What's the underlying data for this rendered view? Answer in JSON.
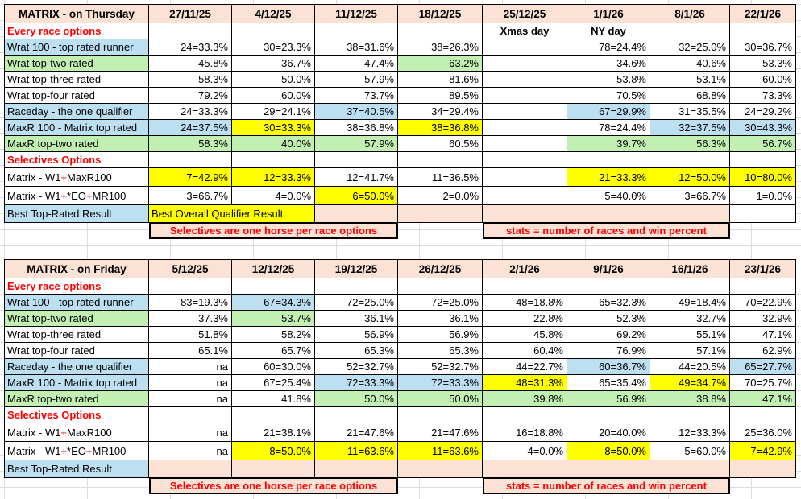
{
  "colors": {
    "peach": "#FBE2D5",
    "blue": "#BDDFF2",
    "green": "#C2F0B2",
    "yellow": "#FFFF00",
    "red": "#FF0000",
    "border": "#000000",
    "gridline": "#DCDCDC"
  },
  "tables": [
    {
      "title": "MATRIX - on Thursday",
      "dates": [
        "27/11/25",
        "4/12/25",
        "11/12/25",
        "18/12/25",
        "25/12/25",
        "1/1/26",
        "8/1/26",
        "22/1/26"
      ],
      "rows": [
        {
          "type": "section",
          "label": "Every race options",
          "notes": [
            {
              "col": 4,
              "text": "Xmas day"
            },
            {
              "col": 5,
              "text": "NY day"
            }
          ]
        },
        {
          "type": "data",
          "label": "Wrat 100 - top rated runner",
          "label_bg": "b",
          "cells": [
            "24=33.3%",
            "30=23.3%",
            "38=31.6%",
            "38=26.3%",
            "",
            "78=24.4%",
            "32=25.0%",
            "30=36.7%"
          ],
          "bg": [
            "",
            "",
            "",
            "",
            "",
            "",
            "",
            ""
          ]
        },
        {
          "type": "data",
          "label": "Wrat top-two rated",
          "label_bg": "g",
          "cells": [
            "45.8%",
            "36.7%",
            "47.4%",
            "63.2%",
            "",
            "34.6%",
            "40.6%",
            "53.3%"
          ],
          "bg": [
            "",
            "",
            "",
            "g",
            "",
            "",
            "",
            ""
          ]
        },
        {
          "type": "data",
          "label": "Wrat top-three rated",
          "label_bg": "",
          "cells": [
            "58.3%",
            "50.0%",
            "57.9%",
            "81.6%",
            "",
            "53.8%",
            "53.1%",
            "60.0%"
          ],
          "bg": [
            "",
            "",
            "",
            "",
            "",
            "",
            "",
            ""
          ]
        },
        {
          "type": "data",
          "label": "Wrat top-four rated",
          "label_bg": "",
          "cells": [
            "79.2%",
            "60.0%",
            "73.7%",
            "89.5%",
            "",
            "70.5%",
            "68.8%",
            "73.3%"
          ],
          "bg": [
            "",
            "",
            "",
            "",
            "",
            "",
            "",
            ""
          ]
        },
        {
          "type": "data",
          "label": "Raceday - the one qualifier",
          "label_bg": "b",
          "cells": [
            "24=33.3%",
            "29=24.1%",
            "37=40.5%",
            "34=29.4%",
            "",
            "67=29.9%",
            "31=35.5%",
            "24=29.2%"
          ],
          "bg": [
            "",
            "",
            "b",
            "",
            "",
            "b",
            "",
            ""
          ]
        },
        {
          "type": "data",
          "label": "MaxR 100 - Matrix top rated",
          "label_bg": "b",
          "cells": [
            "24=37.5%",
            "30=33.3%",
            "38=36.8%",
            "38=36.8%",
            "",
            "78=24.4%",
            "32=37.5%",
            "30=43.3%"
          ],
          "bg": [
            "b",
            "y",
            "",
            "y",
            "",
            "",
            "b",
            "b"
          ]
        },
        {
          "type": "data",
          "label": "MaxR top-two rated",
          "label_bg": "g",
          "cells": [
            "58.3%",
            "40.0%",
            "57.9%",
            "60.5%",
            "",
            "39.7%",
            "56.3%",
            "56.7%"
          ],
          "bg": [
            "g",
            "g",
            "g",
            "",
            "",
            "g",
            "g",
            "g"
          ]
        },
        {
          "type": "section",
          "label": "Selectives Options",
          "notes": []
        },
        {
          "type": "data",
          "label": "Matrix - W1+MaxR100",
          "label_bg": "",
          "parts": [
            {
              "t": "Matrix - W1"
            },
            {
              "t": "+",
              "red": true
            },
            {
              "t": "MaxR100"
            }
          ],
          "cells": [
            "7=42.9%",
            "12=33.3%",
            "12=41.7%",
            "11=36.5%",
            "",
            "21=33.3%",
            "12=50.0%",
            "10=80.0%"
          ],
          "bg": [
            "y",
            "y",
            "",
            "",
            "",
            "y",
            "y",
            "y"
          ]
        },
        {
          "type": "data",
          "label": "Matrix - W1+*EO+MR100",
          "label_bg": "",
          "parts": [
            {
              "t": "Matrix - W1"
            },
            {
              "t": "+",
              "red": true
            },
            {
              "t": "*EO"
            },
            {
              "t": "+",
              "red": true
            },
            {
              "t": "MR100"
            }
          ],
          "cells": [
            "3=66.7%",
            "4=0.0%",
            "6=50.0%",
            "2=0.0%",
            "",
            "5=40.0%",
            "3=66.7%",
            "1=0.0%"
          ],
          "bg": [
            "",
            "",
            "y",
            "",
            "",
            "",
            "",
            ""
          ]
        },
        {
          "type": "best",
          "label": "Best Top-Rated Result",
          "banner": "Best Overall Qualifier Result",
          "last_col_white": true
        },
        {
          "type": "footer",
          "left": "Selectives are one horse per race options",
          "right": "stats = number of races and win percent"
        }
      ]
    },
    {
      "title": "MATRIX - on Friday",
      "dates": [
        "5/12/25",
        "12/12/25",
        "19/12/25",
        "26/12/25",
        "2/1/26",
        "9/1/26",
        "16/1/26",
        "23/1/26"
      ],
      "rows": [
        {
          "type": "section",
          "label": "Every race options",
          "notes": []
        },
        {
          "type": "data",
          "label": "Wrat 100 - top rated runner",
          "label_bg": "b",
          "cells": [
            "83=19.3%",
            "67=34.3%",
            "72=25.0%",
            "72=25.0%",
            "48=18.8%",
            "65=32.3%",
            "49=18.4%",
            "70=22.9%"
          ],
          "bg": [
            "",
            "b",
            "",
            "",
            "",
            "",
            "",
            ""
          ]
        },
        {
          "type": "data",
          "label": "Wrat top-two rated",
          "label_bg": "g",
          "cells": [
            "37.3%",
            "53.7%",
            "36.1%",
            "36.1%",
            "22.8%",
            "52.3%",
            "32.7%",
            "32.9%"
          ],
          "bg": [
            "",
            "g",
            "",
            "",
            "",
            "",
            "",
            ""
          ]
        },
        {
          "type": "data",
          "label": "Wrat top-three rated",
          "label_bg": "",
          "cells": [
            "51.8%",
            "58.2%",
            "56.9%",
            "56.9%",
            "45.8%",
            "69.2%",
            "55.1%",
            "47.1%"
          ],
          "bg": [
            "",
            "",
            "",
            "",
            "",
            "",
            "",
            ""
          ]
        },
        {
          "type": "data",
          "label": "Wrat top-four rated",
          "label_bg": "",
          "cells": [
            "65.1%",
            "65.7%",
            "65.3%",
            "65.3%",
            "60.4%",
            "76.9%",
            "57.1%",
            "62.9%"
          ],
          "bg": [
            "",
            "",
            "",
            "",
            "",
            "",
            "",
            ""
          ]
        },
        {
          "type": "data",
          "label": "Raceday - the one qualifier",
          "label_bg": "b",
          "cells": [
            "na",
            "60=30.0%",
            "52=32.7%",
            "52=32.7%",
            "44=22.7%",
            "60=36.7%",
            "44=20.5%",
            "65=27.7%"
          ],
          "bg": [
            "",
            "",
            "",
            "",
            "",
            "b",
            "",
            "b"
          ]
        },
        {
          "type": "data",
          "label": "MaxR 100 - Matrix top rated",
          "label_bg": "b",
          "cells": [
            "na",
            "67=25.4%",
            "72=33.3%",
            "72=33.3%",
            "48=31.3%",
            "65=35.4%",
            "49=34.7%",
            "70=25.7%"
          ],
          "bg": [
            "",
            "",
            "b",
            "b",
            "y",
            "",
            "y",
            ""
          ]
        },
        {
          "type": "data",
          "label": "MaxR top-two rated",
          "label_bg": "g",
          "cells": [
            "na",
            "41.8%",
            "50.0%",
            "50.0%",
            "39.8%",
            "56.9%",
            "38.8%",
            "47.1%"
          ],
          "bg": [
            "",
            "",
            "g",
            "g",
            "g",
            "g",
            "g",
            "g"
          ]
        },
        {
          "type": "section",
          "label": "Selectives Options",
          "notes": []
        },
        {
          "type": "data",
          "label": "Matrix - W1+MaxR100",
          "label_bg": "",
          "parts": [
            {
              "t": "Matrix - W1"
            },
            {
              "t": "+",
              "red": true
            },
            {
              "t": "MaxR100"
            }
          ],
          "cells": [
            "na",
            "21=38.1%",
            "21=47.6%",
            "21=47.6%",
            "16=18.8%",
            "20=40.0%",
            "12=33.3%",
            "25=36.0%"
          ],
          "bg": [
            "",
            "",
            "",
            "",
            "",
            "",
            "",
            ""
          ]
        },
        {
          "type": "data",
          "label": "Matrix - W1+*EO+MR100",
          "label_bg": "",
          "parts": [
            {
              "t": "Matrix - W1"
            },
            {
              "t": "+",
              "red": true
            },
            {
              "t": "*EO"
            },
            {
              "t": "+",
              "red": true
            },
            {
              "t": "MR100"
            }
          ],
          "cells": [
            "na",
            "8=50.0%",
            "11=63.6%",
            "11=63.6%",
            "4=0.0%",
            "8=50.0%",
            "5=60.0%",
            "7=42.9%"
          ],
          "bg": [
            "",
            "y",
            "y",
            "y",
            "",
            "y",
            "",
            "y"
          ]
        },
        {
          "type": "best",
          "label": "Best Top-Rated Result",
          "banner": null,
          "last_col_white": false
        },
        {
          "type": "footer",
          "left": "Selectives are one horse per race options",
          "right": "stats = number of races and win percent"
        }
      ]
    }
  ]
}
